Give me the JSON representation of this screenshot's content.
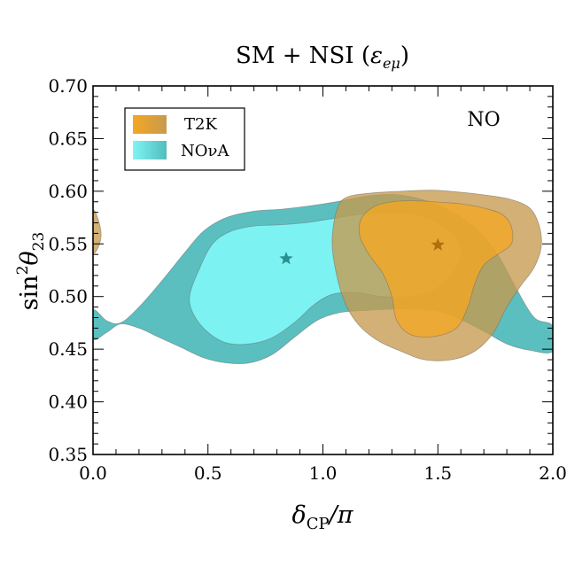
{
  "chart_data": {
    "type": "contour",
    "title_prefix": "SM + NSI (",
    "title_symbol": "ε",
    "title_subscript": "eμ",
    "title_suffix": ")",
    "title": "SM + NSI (εeμ)",
    "xlabel_main": "δ",
    "xlabel_sub": "CP",
    "xlabel_tail": "/π",
    "xlabel": "δCP/π",
    "ylabel_prefix": "sin",
    "ylabel_sup": "2",
    "ylabel_main": "θ",
    "ylabel_sub": "23",
    "ylabel": "sin²θ23",
    "xlim": [
      0.0,
      2.0
    ],
    "ylim": [
      0.35,
      0.7
    ],
    "xticks": [
      0.0,
      0.5,
      1.0,
      1.5,
      2.0
    ],
    "xtick_labels": [
      "0.0",
      "0.5",
      "1.0",
      "1.5",
      "2.0"
    ],
    "yticks": [
      0.35,
      0.4,
      0.45,
      0.5,
      0.55,
      0.6,
      0.65,
      0.7
    ],
    "ytick_labels": [
      "0.35",
      "0.40",
      "0.45",
      "0.50",
      "0.55",
      "0.60",
      "0.65",
      "0.70"
    ],
    "annotation": "NO",
    "legend": {
      "position": "top-left",
      "entries": [
        "T2K",
        "NOνA"
      ]
    },
    "series": [
      {
        "name": "NOνA",
        "color_inner": "#7ff4f4",
        "color_outer": "#52bcbc",
        "best_fit": {
          "x": 0.84,
          "y": 0.536
        },
        "regions": [
          {
            "level": "outer",
            "contours": [
              [
                [
                  0.0,
                  0.487
                ],
                [
                  0.06,
                  0.477
                ],
                [
                  0.12,
                  0.475
                ],
                [
                  0.2,
                  0.49
                ],
                [
                  0.3,
                  0.515
                ],
                [
                  0.4,
                  0.542
                ],
                [
                  0.48,
                  0.562
                ],
                [
                  0.58,
                  0.575
                ],
                [
                  0.7,
                  0.581
                ],
                [
                  0.82,
                  0.583
                ],
                [
                  0.94,
                  0.586
                ],
                [
                  1.06,
                  0.59
                ],
                [
                  1.18,
                  0.595
                ],
                [
                  1.3,
                  0.597
                ],
                [
                  1.42,
                  0.593
                ],
                [
                  1.54,
                  0.583
                ],
                [
                  1.66,
                  0.566
                ],
                [
                  1.76,
                  0.54
                ],
                [
                  1.84,
                  0.508
                ],
                [
                  1.92,
                  0.48
                ],
                [
                  2.0,
                  0.472
                ],
                [
                  2.0,
                  0.448
                ],
                [
                  1.9,
                  0.449
                ],
                [
                  1.8,
                  0.455
                ],
                [
                  1.7,
                  0.467
                ],
                [
                  1.6,
                  0.478
                ],
                [
                  1.5,
                  0.486
                ],
                [
                  1.4,
                  0.488
                ],
                [
                  1.3,
                  0.488
                ],
                [
                  1.2,
                  0.487
                ],
                [
                  1.08,
                  0.485
                ],
                [
                  0.98,
                  0.478
                ],
                [
                  0.88,
                  0.462
                ],
                [
                  0.78,
                  0.445
                ],
                [
                  0.68,
                  0.437
                ],
                [
                  0.58,
                  0.437
                ],
                [
                  0.48,
                  0.442
                ],
                [
                  0.38,
                  0.452
                ],
                [
                  0.28,
                  0.462
                ],
                [
                  0.2,
                  0.47
                ],
                [
                  0.12,
                  0.474
                ],
                [
                  0.06,
                  0.466
                ],
                [
                  0.0,
                  0.46
                ]
              ]
            ]
          },
          {
            "level": "inner",
            "contours": [
              [
                [
                  0.42,
                  0.5
                ],
                [
                  0.46,
                  0.525
                ],
                [
                  0.52,
                  0.55
                ],
                [
                  0.6,
                  0.562
                ],
                [
                  0.7,
                  0.567
                ],
                [
                  0.8,
                  0.568
                ],
                [
                  0.92,
                  0.57
                ],
                [
                  1.04,
                  0.574
                ],
                [
                  1.16,
                  0.578
                ],
                [
                  1.28,
                  0.58
                ],
                [
                  1.4,
                  0.578
                ],
                [
                  1.5,
                  0.57
                ],
                [
                  1.58,
                  0.556
                ],
                [
                  1.6,
                  0.54
                ],
                [
                  1.56,
                  0.52
                ],
                [
                  1.48,
                  0.506
                ],
                [
                  1.38,
                  0.5
                ],
                [
                  1.26,
                  0.5
                ],
                [
                  1.14,
                  0.504
                ],
                [
                  1.04,
                  0.502
                ],
                [
                  0.96,
                  0.492
                ],
                [
                  0.88,
                  0.476
                ],
                [
                  0.78,
                  0.461
                ],
                [
                  0.68,
                  0.455
                ],
                [
                  0.58,
                  0.456
                ],
                [
                  0.5,
                  0.466
                ],
                [
                  0.44,
                  0.482
                ]
              ]
            ]
          }
        ]
      },
      {
        "name": "T2K",
        "color_inner": "#f5a623",
        "color_outer": "#c79a4e",
        "best_fit": {
          "x": 1.5,
          "y": 0.549
        },
        "regions": [
          {
            "level": "outer",
            "contours": [
              [
                [
                  1.06,
                  0.582
                ],
                [
                  1.1,
                  0.594
                ],
                [
                  1.2,
                  0.598
                ],
                [
                  1.34,
                  0.6
                ],
                [
                  1.48,
                  0.601
                ],
                [
                  1.6,
                  0.599
                ],
                [
                  1.72,
                  0.596
                ],
                [
                  1.82,
                  0.592
                ],
                [
                  1.9,
                  0.584
                ],
                [
                  1.94,
                  0.568
                ],
                [
                  1.95,
                  0.548
                ],
                [
                  1.92,
                  0.528
                ],
                [
                  1.86,
                  0.51
                ],
                [
                  1.8,
                  0.49
                ],
                [
                  1.74,
                  0.465
                ],
                [
                  1.66,
                  0.448
                ],
                [
                  1.56,
                  0.44
                ],
                [
                  1.44,
                  0.44
                ],
                [
                  1.34,
                  0.448
                ],
                [
                  1.24,
                  0.458
                ],
                [
                  1.16,
                  0.472
                ],
                [
                  1.1,
                  0.492
                ],
                [
                  1.06,
                  0.52
                ],
                [
                  1.04,
                  0.552
                ]
              ],
              [
                [
                  0.0,
                  0.58
                ],
                [
                  0.02,
                  0.575
                ],
                [
                  0.035,
                  0.56
                ],
                [
                  0.025,
                  0.548
                ],
                [
                  0.0,
                  0.543
                ]
              ]
            ]
          },
          {
            "level": "inner",
            "contours": [
              [
                [
                  1.17,
                  0.575
                ],
                [
                  1.24,
                  0.587
                ],
                [
                  1.36,
                  0.591
                ],
                [
                  1.48,
                  0.59
                ],
                [
                  1.6,
                  0.588
                ],
                [
                  1.7,
                  0.584
                ],
                [
                  1.78,
                  0.578
                ],
                [
                  1.82,
                  0.566
                ],
                [
                  1.82,
                  0.55
                ],
                [
                  1.76,
                  0.54
                ],
                [
                  1.7,
                  0.53
                ],
                [
                  1.66,
                  0.512
                ],
                [
                  1.63,
                  0.49
                ],
                [
                  1.58,
                  0.47
                ],
                [
                  1.48,
                  0.462
                ],
                [
                  1.38,
                  0.464
                ],
                [
                  1.32,
                  0.478
                ],
                [
                  1.3,
                  0.5
                ],
                [
                  1.26,
                  0.522
                ],
                [
                  1.2,
                  0.54
                ],
                [
                  1.16,
                  0.558
                ]
              ]
            ]
          }
        ]
      }
    ]
  }
}
